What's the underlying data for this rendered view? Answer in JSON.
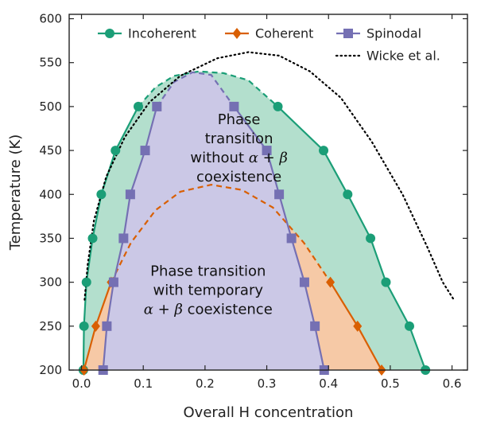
{
  "chart_data": {
    "type": "line",
    "xlabel": "Overall H concentration",
    "ylabel": "Temperature (K)",
    "xlim": [
      -0.02,
      0.625
    ],
    "ylim": [
      200,
      605
    ],
    "xticks": [
      0.0,
      0.1,
      0.2,
      0.3,
      0.4,
      0.5,
      0.6
    ],
    "xtick_labels": [
      "0.0",
      "0.1",
      "0.2",
      "0.3",
      "0.4",
      "0.5",
      "0.6"
    ],
    "yticks": [
      200,
      250,
      300,
      350,
      400,
      450,
      500,
      550,
      600
    ],
    "ytick_labels": [
      "200",
      "250",
      "300",
      "350",
      "400",
      "450",
      "500",
      "550",
      "600"
    ],
    "legend_placement": "top",
    "series": [
      {
        "name": "Incoherent",
        "color": "#1b9e77",
        "marker": "circle",
        "style": "solid",
        "points": [
          [
            0.003,
            200
          ],
          [
            0.004,
            250
          ],
          [
            0.008,
            300
          ],
          [
            0.018,
            350
          ],
          [
            0.032,
            400
          ],
          [
            0.055,
            450
          ],
          [
            0.092,
            500
          ],
          [
            0.318,
            500
          ],
          [
            0.392,
            450
          ],
          [
            0.431,
            400
          ],
          [
            0.468,
            350
          ],
          [
            0.493,
            300
          ],
          [
            0.531,
            250
          ],
          [
            0.557,
            200
          ]
        ]
      },
      {
        "name": "Coherent",
        "color": "#d95f02",
        "marker": "diamond",
        "style": "solid",
        "points": [
          [
            0.004,
            200
          ],
          [
            0.023,
            250
          ],
          [
            0.048,
            300
          ],
          [
            0.403,
            300
          ],
          [
            0.447,
            250
          ],
          [
            0.486,
            200
          ]
        ]
      },
      {
        "name": "Spinodal",
        "color": "#7570b3",
        "marker": "square",
        "style": "solid",
        "points": [
          [
            0.035,
            200
          ],
          [
            0.041,
            250
          ],
          [
            0.052,
            300
          ],
          [
            0.068,
            350
          ],
          [
            0.079,
            400
          ],
          [
            0.103,
            450
          ],
          [
            0.122,
            500
          ],
          [
            0.247,
            500
          ],
          [
            0.3,
            450
          ],
          [
            0.32,
            400
          ],
          [
            0.34,
            350
          ],
          [
            0.361,
            300
          ],
          [
            0.378,
            250
          ],
          [
            0.393,
            200
          ]
        ]
      },
      {
        "name": "Wicke et al.",
        "color": "#000000",
        "marker": "none",
        "style": "dotted",
        "points": [
          [
            0.005,
            280
          ],
          [
            0.01,
            320
          ],
          [
            0.02,
            370
          ],
          [
            0.04,
            420
          ],
          [
            0.07,
            465
          ],
          [
            0.11,
            505
          ],
          [
            0.16,
            535
          ],
          [
            0.22,
            555
          ],
          [
            0.27,
            562
          ],
          [
            0.32,
            558
          ],
          [
            0.37,
            540
          ],
          [
            0.42,
            510
          ],
          [
            0.47,
            460
          ],
          [
            0.52,
            400
          ],
          [
            0.56,
            340
          ],
          [
            0.585,
            300
          ],
          [
            0.603,
            280
          ]
        ]
      }
    ],
    "dashed_caps": [
      {
        "series": "Incoherent",
        "color": "#1b9e77",
        "points": [
          [
            0.092,
            500
          ],
          [
            0.12,
            522
          ],
          [
            0.15,
            535
          ],
          [
            0.19,
            540
          ],
          [
            0.23,
            538
          ],
          [
            0.27,
            530
          ],
          [
            0.318,
            500
          ]
        ]
      },
      {
        "series": "Coherent",
        "color": "#d95f02",
        "points": [
          [
            0.048,
            300
          ],
          [
            0.08,
            345
          ],
          [
            0.12,
            382
          ],
          [
            0.16,
            403
          ],
          [
            0.21,
            411
          ],
          [
            0.26,
            405
          ],
          [
            0.31,
            385
          ],
          [
            0.36,
            345
          ],
          [
            0.403,
            300
          ]
        ]
      },
      {
        "series": "Spinodal",
        "color": "#7570b3",
        "points": [
          [
            0.122,
            500
          ],
          [
            0.15,
            528
          ],
          [
            0.18,
            539
          ],
          [
            0.21,
            536
          ],
          [
            0.247,
            500
          ]
        ]
      }
    ],
    "annotations": [
      {
        "lines": [
          "Phase",
          "transition",
          "without α + β",
          "coexistence"
        ],
        "x": 0.255,
        "y": 453
      },
      {
        "lines": [
          "Phase transition",
          "with temporary",
          "α + β coexistence"
        ],
        "x": 0.205,
        "y": 291
      }
    ],
    "fill_colors": {
      "incoherent_region": "#b3dfcd",
      "coherent_region": "#f6c9a6",
      "spinodal_region": "#cbc8e6"
    }
  }
}
